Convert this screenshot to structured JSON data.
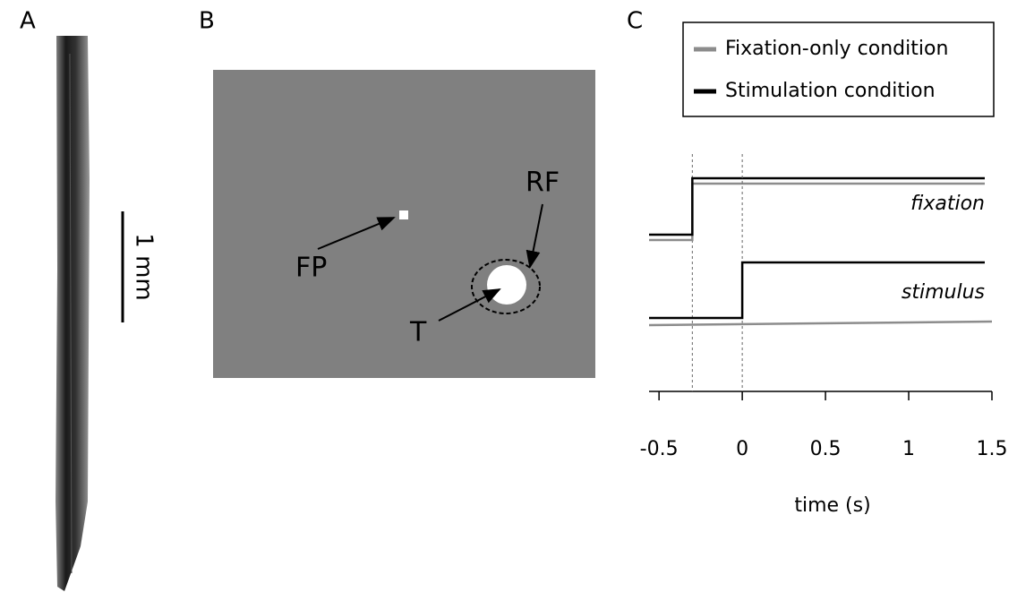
{
  "panels": [
    {
      "label": "A",
      "scale_bar": "1 mm"
    },
    {
      "label": "B",
      "labels": {
        "fp": "FP",
        "t": "T",
        "rf": "RF"
      }
    },
    {
      "label": "C",
      "chart_data": {
        "type": "timing",
        "xlabel": "time (s)",
        "xlim": [
          -0.56,
          1.5
        ],
        "xticks": [
          -0.5,
          0,
          0.5,
          1,
          1.5
        ],
        "series": [
          {
            "name": "Fixation-only condition",
            "color": "#8c8c8c"
          },
          {
            "name": "Stimulation condition",
            "color": "#000000"
          }
        ],
        "events": [
          {
            "name": "fixation",
            "time": -0.3
          },
          {
            "name": "stimulus",
            "time": 0
          }
        ]
      }
    }
  ]
}
